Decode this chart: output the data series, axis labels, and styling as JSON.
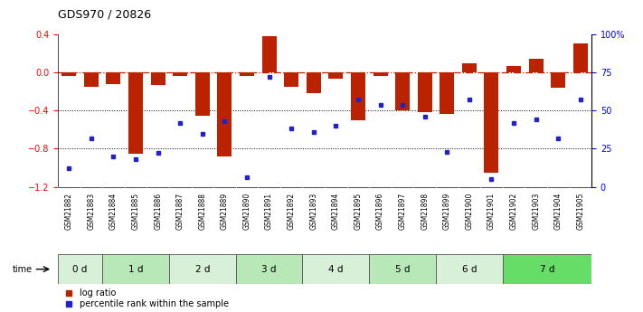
{
  "title": "GDS970 / 20826",
  "samples": [
    "GSM21882",
    "GSM21883",
    "GSM21884",
    "GSM21885",
    "GSM21886",
    "GSM21887",
    "GSM21888",
    "GSM21889",
    "GSM21890",
    "GSM21891",
    "GSM21892",
    "GSM21893",
    "GSM21894",
    "GSM21895",
    "GSM21896",
    "GSM21897",
    "GSM21898",
    "GSM21899",
    "GSM21900",
    "GSM21901",
    "GSM21902",
    "GSM21903",
    "GSM21904",
    "GSM21905"
  ],
  "log_ratio": [
    -0.04,
    -0.15,
    -0.12,
    -0.85,
    -0.13,
    -0.04,
    -0.45,
    -0.88,
    -0.04,
    0.38,
    -0.15,
    -0.22,
    -0.07,
    -0.5,
    -0.04,
    -0.4,
    -0.42,
    -0.44,
    0.1,
    -1.05,
    0.07,
    0.14,
    -0.16,
    0.3
  ],
  "percentile_rank": [
    12,
    32,
    20,
    18,
    22,
    42,
    35,
    43,
    6,
    72,
    38,
    36,
    40,
    57,
    54,
    54,
    46,
    23,
    57,
    5,
    42,
    44,
    32,
    57
  ],
  "time_groups": [
    {
      "label": "0 d",
      "start": 0,
      "end": 2,
      "color": "#d8f0d8"
    },
    {
      "label": "1 d",
      "start": 2,
      "end": 5,
      "color": "#b8e8b8"
    },
    {
      "label": "2 d",
      "start": 5,
      "end": 8,
      "color": "#d8f0d8"
    },
    {
      "label": "3 d",
      "start": 8,
      "end": 11,
      "color": "#b8e8b8"
    },
    {
      "label": "4 d",
      "start": 11,
      "end": 14,
      "color": "#d8f0d8"
    },
    {
      "label": "5 d",
      "start": 14,
      "end": 17,
      "color": "#b8e8b8"
    },
    {
      "label": "6 d",
      "start": 17,
      "end": 20,
      "color": "#d8f0d8"
    },
    {
      "label": "7 d",
      "start": 20,
      "end": 24,
      "color": "#66dd66"
    }
  ],
  "bar_color": "#bb2200",
  "dot_color": "#2222cc",
  "ylim_left": [
    -1.2,
    0.4
  ],
  "ylim_right": [
    0,
    100
  ],
  "yticks_left": [
    -1.2,
    -0.8,
    -0.4,
    0.0,
    0.4
  ],
  "yticks_right": [
    0,
    25,
    50,
    75,
    100
  ],
  "ytick_right_labels": [
    "0",
    "25",
    "50",
    "75",
    "100%"
  ],
  "hline_y": 0.0,
  "dotted_lines": [
    -0.4,
    -0.8
  ],
  "bar_width": 0.65,
  "sample_bg_color": "#d0d0d0",
  "fig_bg": "#ffffff"
}
